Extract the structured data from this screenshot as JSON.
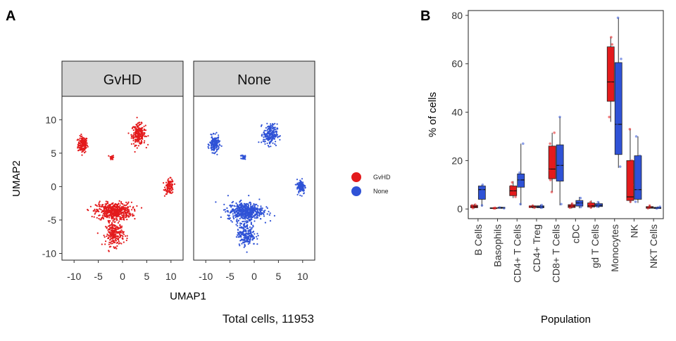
{
  "colors": {
    "gvhd": "#e31a1c",
    "none": "#2f52d6",
    "strip_bg": "#d3d3d3"
  },
  "panel_a": {
    "letter": "A",
    "caption": "Total cells, 11953",
    "legend": [
      "GvHD",
      "None"
    ]
  },
  "panel_b": {
    "letter": "B"
  },
  "chart_data": [
    {
      "type": "scatter",
      "facets": [
        "GvHD",
        "None"
      ],
      "xlabel": "UMAP1",
      "ylabel": "UMAP2",
      "xlim": [
        -12.5,
        12.5
      ],
      "ylim": [
        -11,
        13.5
      ],
      "xticks": [
        -10,
        -5,
        0,
        5,
        10
      ],
      "yticks": [
        -10,
        -5,
        0,
        5,
        10
      ],
      "xtick_labels": [
        "-10",
        "-5",
        "0",
        "5",
        "10"
      ],
      "ytick_labels": [
        "-10",
        "-5",
        "0",
        "5",
        "10"
      ],
      "clusters": [
        {
          "cx": -8.2,
          "cy": 6.3,
          "rx": 0.9,
          "ry": 1.1,
          "n": 160
        },
        {
          "cx": -2.2,
          "cy": 4.4,
          "rx": 0.35,
          "ry": 0.3,
          "n": 25
        },
        {
          "cx": 3.3,
          "cy": 7.8,
          "rx": 1.3,
          "ry": 1.4,
          "n": 220
        },
        {
          "cx": 9.7,
          "cy": 0.0,
          "rx": 0.8,
          "ry": 1.0,
          "n": 110
        },
        {
          "cx": -1.8,
          "cy": -3.7,
          "rx": 3.3,
          "ry": 1.2,
          "n": 520
        },
        {
          "cx": -1.6,
          "cy": -7.1,
          "rx": 1.7,
          "ry": 1.6,
          "n": 220
        }
      ]
    },
    {
      "type": "box",
      "xlabel": "Population",
      "ylabel": "% of cells",
      "ylim": [
        -4,
        82
      ],
      "yticks": [
        0,
        20,
        40,
        60,
        80
      ],
      "ytick_labels": [
        "0",
        "20",
        "40",
        "60",
        "80"
      ],
      "categories": [
        "B Cells",
        "Basophils",
        "CD4+ T Cells",
        "CD4+ Treg",
        "CD8+ T Cells",
        "cDC",
        "gd T Cells",
        "Monocytes",
        "NK",
        "NKT Cells"
      ],
      "groups": [
        "GvHD",
        "None"
      ],
      "boxes": {
        "GvHD": [
          {
            "min": 0.2,
            "q1": 0.5,
            "med": 1.0,
            "q3": 1.5,
            "max": 2.0,
            "pts": [
              0.4,
              1.0,
              1.5,
              1.8
            ]
          },
          {
            "min": 0.1,
            "q1": 0.2,
            "med": 0.3,
            "q3": 0.5,
            "max": 0.7,
            "pts": [
              0.2,
              0.3,
              0.5
            ]
          },
          {
            "min": 4.5,
            "q1": 5.5,
            "med": 7.5,
            "q3": 9.5,
            "max": 11.5,
            "pts": [
              5.0,
              6.5,
              8.0,
              9.5,
              11.0
            ]
          },
          {
            "min": 0.3,
            "q1": 0.6,
            "med": 0.9,
            "q3": 1.3,
            "max": 1.6,
            "pts": [
              0.5,
              0.9,
              1.4
            ]
          },
          {
            "min": 7.0,
            "q1": 12.5,
            "med": 16.5,
            "q3": 26.0,
            "max": 31.5,
            "pts": [
              7.0,
              12.0,
              16.0,
              22.0,
              27.0,
              31.5
            ]
          },
          {
            "min": 0.2,
            "q1": 0.6,
            "med": 1.2,
            "q3": 1.8,
            "max": 2.5,
            "pts": [
              0.5,
              1.2,
              2.2
            ]
          },
          {
            "min": 0.3,
            "q1": 0.8,
            "med": 1.3,
            "q3": 2.5,
            "max": 3.5,
            "pts": [
              0.6,
              1.4,
              2.8
            ]
          },
          {
            "min": 36.0,
            "q1": 44.5,
            "med": 52.5,
            "q3": 67.0,
            "max": 71.0,
            "pts": [
              38.0,
              45.0,
              52.0,
              60.0,
              68.0,
              71.0
            ]
          },
          {
            "min": 2.5,
            "q1": 3.5,
            "med": 5.0,
            "q3": 20.0,
            "max": 33.0,
            "pts": [
              3.0,
              4.0,
              10.0,
              20.0,
              33.0
            ]
          },
          {
            "min": 0.1,
            "q1": 0.3,
            "med": 0.6,
            "q3": 1.0,
            "max": 1.6,
            "pts": [
              0.3,
              0.8,
              1.4
            ]
          }
        ],
        "None": [
          {
            "min": 1.0,
            "q1": 4.0,
            "med": 8.0,
            "q3": 9.5,
            "max": 10.0,
            "pts": [
              1.5,
              5.0,
              8.0,
              9.0,
              10.0
            ]
          },
          {
            "min": 0.1,
            "q1": 0.3,
            "med": 0.5,
            "q3": 0.7,
            "max": 0.9,
            "pts": [
              0.3,
              0.6
            ]
          },
          {
            "min": 1.5,
            "q1": 9.0,
            "med": 12.0,
            "q3": 14.5,
            "max": 27.0,
            "pts": [
              2.0,
              9.5,
              12.0,
              15.0,
              27.0
            ]
          },
          {
            "min": 0.2,
            "q1": 0.5,
            "med": 0.9,
            "q3": 1.3,
            "max": 1.8,
            "pts": [
              0.5,
              1.0,
              1.6
            ]
          },
          {
            "min": 1.5,
            "q1": 11.5,
            "med": 18.0,
            "q3": 26.5,
            "max": 38.0,
            "pts": [
              2.0,
              12.0,
              18.0,
              25.0,
              38.0
            ]
          },
          {
            "min": 0.3,
            "q1": 1.2,
            "med": 2.5,
            "q3": 3.5,
            "max": 5.0,
            "pts": [
              0.8,
              2.5,
              4.5
            ]
          },
          {
            "min": 0.5,
            "q1": 1.0,
            "med": 1.5,
            "q3": 2.2,
            "max": 3.0,
            "pts": [
              1.0,
              1.8,
              2.8
            ]
          },
          {
            "min": 17.0,
            "q1": 22.5,
            "med": 35.0,
            "q3": 60.5,
            "max": 79.0,
            "pts": [
              17.5,
              25.0,
              35.0,
              50.0,
              62.0,
              79.0
            ]
          },
          {
            "min": 2.5,
            "q1": 4.0,
            "med": 8.0,
            "q3": 22.0,
            "max": 30.0,
            "pts": [
              3.0,
              5.0,
              8.0,
              22.0,
              30.0
            ]
          },
          {
            "min": 0.1,
            "q1": 0.2,
            "med": 0.4,
            "q3": 0.7,
            "max": 1.0,
            "pts": [
              0.2,
              0.5,
              0.9
            ]
          }
        ]
      }
    }
  ]
}
